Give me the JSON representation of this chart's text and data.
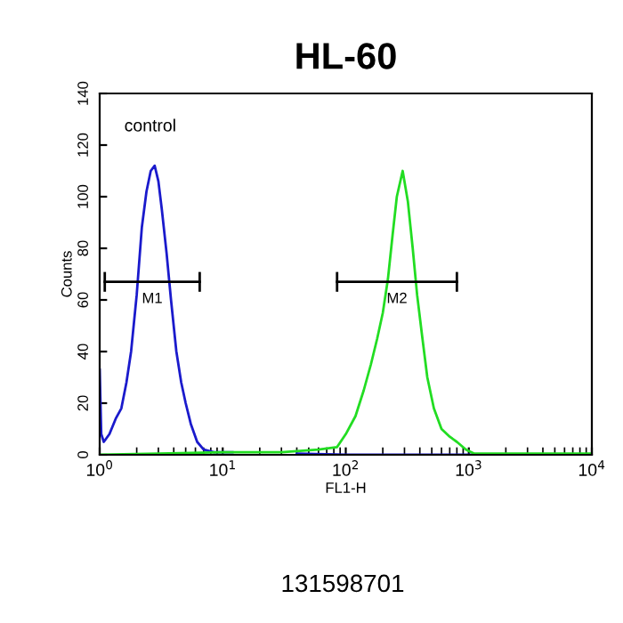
{
  "chart_data": {
    "type": "line",
    "title": "HL-60",
    "xlabel": "FL1-H",
    "ylabel": "Counts",
    "log": "x",
    "xlim": [
      1,
      10000
    ],
    "ylim": [
      0,
      140
    ],
    "xticks": [
      {
        "value": 1,
        "label": "10$^{0}$"
      },
      {
        "value": 10,
        "label": "10$^{1}$"
      },
      {
        "value": 100,
        "label": "10$^{2}$"
      },
      {
        "value": 1000,
        "label": "10$^{3}$"
      },
      {
        "value": 10000,
        "label": "10$^{4}$"
      }
    ],
    "yticks": [
      0,
      20,
      40,
      60,
      80,
      100,
      120,
      140
    ],
    "grid": false,
    "series": [
      {
        "color": "#1a1acc",
        "x": [
          1.0,
          1.03,
          1.08,
          1.2,
          1.35,
          1.5,
          1.65,
          1.8,
          2.0,
          2.2,
          2.4,
          2.6,
          2.8,
          3.0,
          3.2,
          3.5,
          3.8,
          4.2,
          4.6,
          5.0,
          5.5,
          6.2,
          7.0,
          8.5,
          12,
          20,
          40,
          100,
          1000,
          10000
        ],
        "values": [
          33,
          8,
          5,
          8,
          14,
          18,
          28,
          40,
          62,
          88,
          102,
          110,
          112,
          106,
          95,
          78,
          60,
          40,
          28,
          20,
          12,
          5,
          2,
          1,
          1,
          null,
          0.5,
          0,
          0,
          0
        ]
      },
      {
        "color": "#22dd22",
        "x": [
          1.0,
          3,
          10,
          30,
          60,
          85,
          100,
          120,
          140,
          160,
          180,
          200,
          220,
          240,
          260,
          290,
          320,
          350,
          380,
          420,
          460,
          520,
          600,
          700,
          800,
          950,
          1100,
          2000,
          10000
        ],
        "values": [
          0,
          0.5,
          1,
          1,
          2,
          3,
          8,
          15,
          25,
          35,
          45,
          55,
          68,
          85,
          100,
          110,
          98,
          80,
          62,
          45,
          30,
          18,
          10,
          7,
          5,
          2,
          0.5,
          0.5,
          0.5
        ]
      },
      {
        "name": "M1",
        "color": "#000000",
        "x": [
          1.1,
          6.5
        ],
        "values": [
          67,
          67
        ]
      },
      {
        "name": "M2",
        "color": "#000000",
        "x": [
          85,
          800
        ],
        "values": [
          67,
          67
        ]
      }
    ],
    "marker": "none",
    "annotations": [
      "control",
      "131598701"
    ]
  }
}
